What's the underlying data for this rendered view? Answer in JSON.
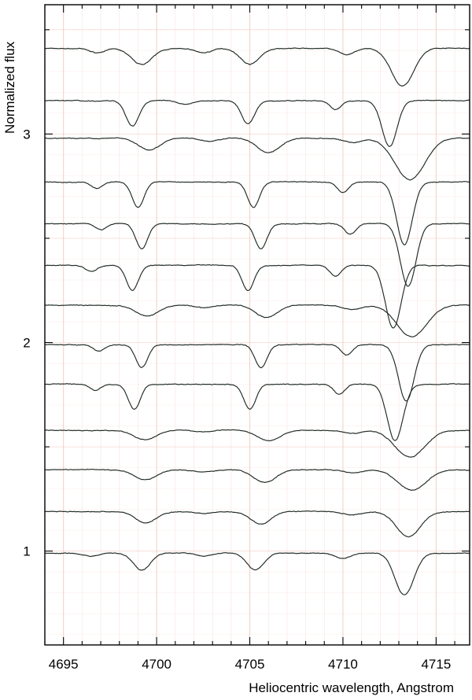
{
  "chart_data": {
    "type": "line",
    "title": "",
    "xlabel": "Heliocentric wavelength, Angstrom",
    "ylabel": "Normalized flux",
    "xlim": [
      4694.0,
      4716.8
    ],
    "ylim": [
      0.55,
      3.62
    ],
    "x_ticks": [
      4695,
      4700,
      4705,
      4710,
      4715
    ],
    "x_tick_labels": [
      "4695",
      "4700",
      "4705",
      "4710",
      "4715"
    ],
    "y_ticks": [
      1,
      2,
      3
    ],
    "y_tick_labels": [
      "1",
      "2",
      "3"
    ],
    "grid": true,
    "grid_color": "#f3c9bd",
    "line_color": "#1f2a24",
    "series": [
      {
        "baseline": 3.41,
        "lines": [
          [
            4699.2,
            0.075,
            0.55
          ],
          [
            4705.0,
            0.075,
            0.5
          ],
          [
            4713.2,
            0.18,
            0.6
          ],
          [
            4696.8,
            0.02,
            0.4
          ],
          [
            4702.5,
            0.02,
            0.4
          ],
          [
            4710.2,
            0.03,
            0.4
          ]
        ]
      },
      {
        "baseline": 3.16,
        "lines": [
          [
            4698.7,
            0.12,
            0.35
          ],
          [
            4704.9,
            0.11,
            0.35
          ],
          [
            4709.6,
            0.04,
            0.3
          ],
          [
            4712.5,
            0.22,
            0.4
          ],
          [
            4701.5,
            0.02,
            0.4
          ]
        ]
      },
      {
        "baseline": 2.98,
        "lines": [
          [
            4699.6,
            0.055,
            0.6
          ],
          [
            4706.0,
            0.07,
            0.6
          ],
          [
            4713.6,
            0.2,
            0.8
          ],
          [
            4702.8,
            0.015,
            0.5
          ],
          [
            4710.5,
            0.02,
            0.5
          ]
        ]
      },
      {
        "baseline": 2.77,
        "lines": [
          [
            4696.8,
            0.03,
            0.3
          ],
          [
            4699.0,
            0.12,
            0.32
          ],
          [
            4705.2,
            0.12,
            0.32
          ],
          [
            4710.0,
            0.05,
            0.3
          ],
          [
            4713.3,
            0.3,
            0.42
          ]
        ]
      },
      {
        "baseline": 2.57,
        "lines": [
          [
            4697.0,
            0.03,
            0.3
          ],
          [
            4699.2,
            0.12,
            0.32
          ],
          [
            4705.6,
            0.12,
            0.32
          ],
          [
            4710.4,
            0.05,
            0.3
          ],
          [
            4713.5,
            0.3,
            0.42
          ]
        ]
      },
      {
        "baseline": 2.37,
        "lines": [
          [
            4696.5,
            0.03,
            0.3
          ],
          [
            4698.7,
            0.12,
            0.32
          ],
          [
            4704.9,
            0.12,
            0.32
          ],
          [
            4709.6,
            0.05,
            0.3
          ],
          [
            4712.7,
            0.3,
            0.42
          ]
        ]
      },
      {
        "baseline": 2.18,
        "lines": [
          [
            4699.5,
            0.05,
            0.6
          ],
          [
            4705.9,
            0.06,
            0.6
          ],
          [
            4713.7,
            0.15,
            0.8
          ],
          [
            4702.5,
            0.015,
            0.5
          ],
          [
            4710.5,
            0.02,
            0.5
          ]
        ]
      },
      {
        "baseline": 1.99,
        "lines": [
          [
            4696.9,
            0.03,
            0.3
          ],
          [
            4699.2,
            0.11,
            0.32
          ],
          [
            4705.6,
            0.11,
            0.32
          ],
          [
            4710.2,
            0.05,
            0.3
          ],
          [
            4713.4,
            0.27,
            0.42
          ]
        ]
      },
      {
        "baseline": 1.8,
        "lines": [
          [
            4696.7,
            0.03,
            0.3
          ],
          [
            4698.8,
            0.12,
            0.32
          ],
          [
            4705.0,
            0.12,
            0.32
          ],
          [
            4709.8,
            0.05,
            0.3
          ],
          [
            4712.8,
            0.27,
            0.42
          ]
        ]
      },
      {
        "baseline": 1.58,
        "lines": [
          [
            4699.4,
            0.045,
            0.6
          ],
          [
            4706.0,
            0.05,
            0.6
          ],
          [
            4713.6,
            0.13,
            0.8
          ],
          [
            4702.5,
            0.01,
            0.5
          ],
          [
            4710.5,
            0.015,
            0.5
          ]
        ]
      },
      {
        "baseline": 1.39,
        "lines": [
          [
            4699.4,
            0.05,
            0.6
          ],
          [
            4705.8,
            0.06,
            0.6
          ],
          [
            4713.7,
            0.1,
            0.75
          ],
          [
            4702.5,
            0.01,
            0.5
          ],
          [
            4710.5,
            0.015,
            0.5
          ]
        ]
      },
      {
        "baseline": 1.19,
        "lines": [
          [
            4699.4,
            0.055,
            0.55
          ],
          [
            4705.6,
            0.06,
            0.55
          ],
          [
            4713.5,
            0.12,
            0.65
          ],
          [
            4702.5,
            0.01,
            0.5
          ],
          [
            4710.5,
            0.015,
            0.5
          ]
        ]
      },
      {
        "baseline": 0.99,
        "lines": [
          [
            4699.2,
            0.08,
            0.45
          ],
          [
            4705.3,
            0.08,
            0.45
          ],
          [
            4713.3,
            0.2,
            0.5
          ],
          [
            4696.5,
            0.015,
            0.4
          ],
          [
            4702.5,
            0.015,
            0.4
          ],
          [
            4710.0,
            0.025,
            0.4
          ]
        ]
      }
    ]
  }
}
